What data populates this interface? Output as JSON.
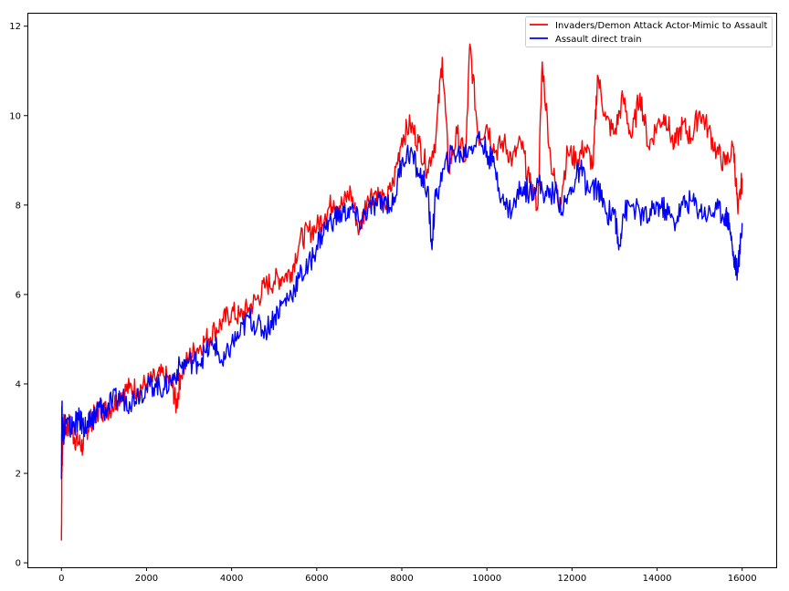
{
  "chart_data": {
    "type": "line",
    "title": "",
    "xlabel": "",
    "ylabel": "",
    "xlim": [
      -800,
      16800
    ],
    "ylim": [
      -0.1,
      12.3
    ],
    "x_ticks": [
      0,
      2000,
      4000,
      6000,
      8000,
      10000,
      12000,
      14000,
      16000
    ],
    "x_tick_labels": [
      "0",
      "2000",
      "4000",
      "6000",
      "8000",
      "10000",
      "12000",
      "14000",
      "16000"
    ],
    "y_ticks": [
      0,
      2,
      4,
      6,
      8,
      10,
      12
    ],
    "y_tick_labels": [
      "0",
      "2",
      "4",
      "6",
      "8",
      "10",
      "12"
    ],
    "grid": false,
    "legend_position": "top-right",
    "series": [
      {
        "name": "Invaders/Demon Attack Actor-Mimic to Assault",
        "color": "#ff0000",
        "x": [
          0,
          10,
          30,
          60,
          100,
          200,
          300,
          400,
          500,
          600,
          700,
          800,
          900,
          1000,
          1200,
          1400,
          1600,
          1800,
          2000,
          2200,
          2400,
          2600,
          2700,
          2800,
          3000,
          3200,
          3400,
          3600,
          3800,
          4000,
          4200,
          4400,
          4600,
          4800,
          5000,
          5200,
          5400,
          5600,
          5800,
          6000,
          6200,
          6400,
          6600,
          6800,
          7000,
          7200,
          7400,
          7600,
          7800,
          8000,
          8200,
          8400,
          8600,
          8800,
          8950,
          9100,
          9300,
          9500,
          9600,
          9800,
          10000,
          10200,
          10400,
          10600,
          10800,
          11000,
          11200,
          11300,
          11500,
          11700,
          11900,
          12100,
          12300,
          12500,
          12600,
          12800,
          13000,
          13200,
          13400,
          13600,
          13800,
          14000,
          14200,
          14400,
          14600,
          14800,
          15000,
          15200,
          15400,
          15600,
          15800,
          15900,
          16000
        ],
        "y": [
          0.5,
          2.0,
          2.8,
          3.1,
          3.0,
          3.1,
          2.8,
          2.7,
          2.6,
          3.0,
          3.2,
          3.3,
          3.5,
          3.4,
          3.5,
          3.8,
          3.9,
          3.9,
          4.0,
          4.1,
          4.2,
          4.0,
          3.5,
          4.2,
          4.6,
          4.8,
          5.0,
          5.2,
          5.4,
          5.6,
          5.5,
          5.7,
          5.9,
          6.2,
          6.3,
          6.4,
          6.5,
          7.2,
          7.4,
          7.5,
          7.8,
          8.1,
          8.0,
          8.3,
          7.4,
          8.2,
          8.3,
          8.0,
          8.5,
          9.5,
          9.8,
          9.4,
          8.8,
          9.5,
          11.3,
          8.8,
          9.6,
          9.0,
          11.6,
          9.5,
          9.8,
          9.2,
          9.4,
          9.0,
          9.4,
          8.5,
          8.0,
          11.2,
          9.0,
          8.0,
          9.2,
          9.0,
          9.3,
          8.9,
          10.9,
          9.9,
          9.6,
          10.4,
          9.5,
          10.5,
          9.3,
          9.8,
          10.0,
          9.3,
          9.8,
          9.5,
          10.1,
          9.7,
          9.2,
          8.9,
          9.3,
          7.8,
          8.6
        ]
      },
      {
        "name": "Assault direct train",
        "color": "#0000ff",
        "x": [
          0,
          10,
          30,
          60,
          100,
          200,
          300,
          400,
          500,
          600,
          700,
          800,
          900,
          1000,
          1200,
          1400,
          1600,
          1800,
          2000,
          2200,
          2400,
          2600,
          2800,
          3000,
          3200,
          3400,
          3600,
          3800,
          4000,
          4200,
          4400,
          4600,
          4800,
          5000,
          5200,
          5400,
          5600,
          5800,
          6000,
          6200,
          6400,
          6600,
          6800,
          7000,
          7200,
          7400,
          7600,
          7800,
          8000,
          8200,
          8400,
          8600,
          8700,
          8800,
          9000,
          9200,
          9400,
          9600,
          9800,
          10000,
          10200,
          10400,
          10600,
          10800,
          11000,
          11200,
          11400,
          11600,
          11800,
          12000,
          12200,
          12400,
          12600,
          12800,
          13000,
          13100,
          13200,
          13400,
          13600,
          13800,
          14000,
          14200,
          14400,
          14600,
          14800,
          15000,
          15200,
          15400,
          15600,
          15700,
          15800,
          15900,
          16000
        ],
        "y": [
          2.0,
          3.5,
          3.0,
          2.9,
          3.2,
          3.0,
          3.1,
          3.2,
          3.1,
          3.0,
          3.2,
          3.3,
          3.5,
          3.4,
          3.6,
          3.7,
          3.6,
          3.8,
          3.9,
          4.0,
          3.9,
          4.1,
          4.4,
          4.5,
          4.5,
          4.7,
          4.9,
          4.4,
          4.9,
          5.1,
          5.5,
          5.3,
          5.2,
          5.5,
          5.8,
          6.0,
          6.4,
          6.6,
          7.1,
          7.5,
          7.7,
          7.8,
          7.9,
          7.6,
          7.9,
          8.0,
          8.1,
          8.0,
          9.0,
          9.2,
          8.7,
          8.4,
          7.1,
          8.2,
          8.8,
          9.2,
          9.1,
          9.3,
          9.5,
          9.2,
          8.8,
          8.0,
          7.9,
          8.4,
          8.3,
          8.5,
          8.2,
          8.3,
          7.9,
          8.4,
          8.8,
          8.3,
          8.4,
          7.8,
          7.9,
          7.0,
          7.8,
          8.0,
          7.8,
          7.7,
          8.0,
          7.9,
          7.6,
          8.0,
          8.1,
          7.9,
          7.8,
          7.9,
          7.8,
          7.6,
          6.8,
          6.5,
          7.6
        ]
      }
    ]
  }
}
